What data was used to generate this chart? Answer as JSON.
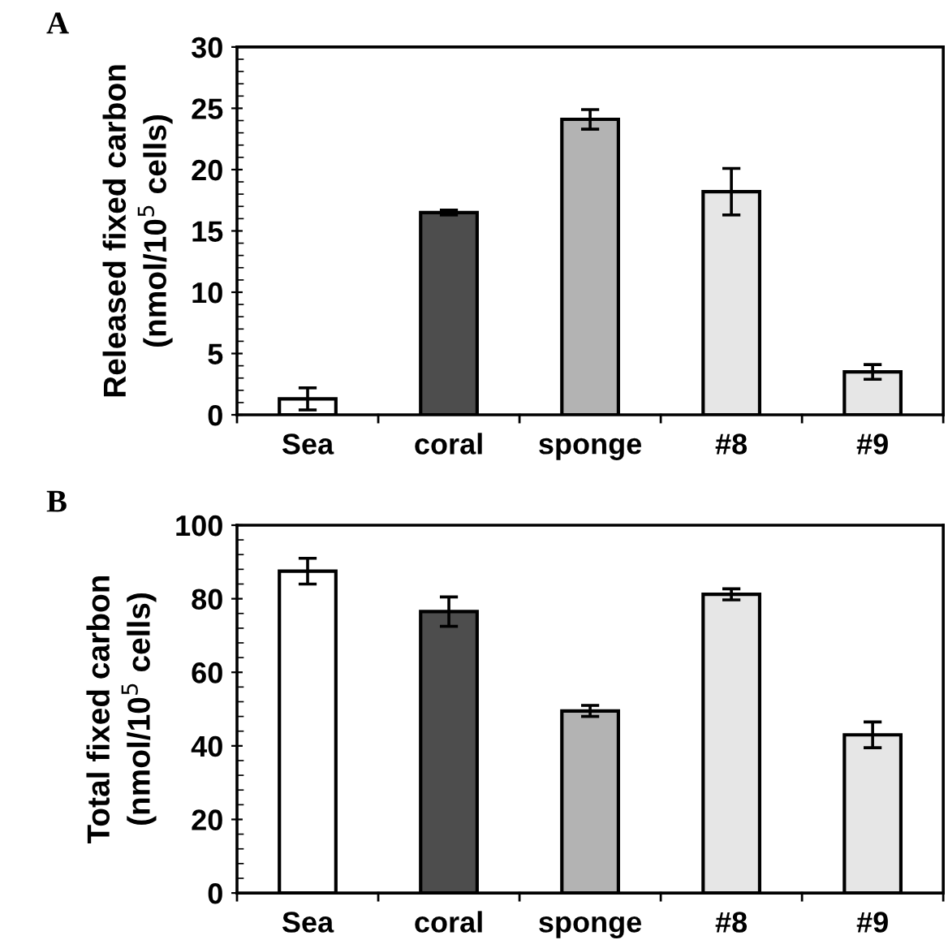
{
  "chart_data": [
    {
      "type": "bar",
      "title": "A",
      "ylabel": "Released fixed carbon\n(nmol/10$^{5}$ cells)",
      "categories": [
        "Sea",
        "coral",
        "sponge",
        "#8",
        "#9"
      ],
      "values": [
        1.3,
        16.5,
        24.1,
        18.2,
        3.5
      ],
      "errors": [
        0.9,
        0.2,
        0.8,
        1.9,
        0.6
      ],
      "colors": [
        "#ffffff",
        "#4d4d4d",
        "#b3b3b3",
        "#e6e6e6",
        "#e6e6e6"
      ],
      "ylim": [
        0,
        30
      ],
      "yticks": [
        0,
        5,
        10,
        15,
        20,
        25,
        30
      ],
      "grid": false,
      "legend": false
    },
    {
      "type": "bar",
      "title": "B",
      "ylabel": "Total fixed carbon\n(nmol/10$^{5}$ cells)",
      "categories": [
        "Sea",
        "coral",
        "sponge",
        "#8",
        "#9"
      ],
      "values": [
        87.5,
        76.5,
        49.5,
        81.2,
        43
      ],
      "errors": [
        3.5,
        4,
        1.5,
        1.5,
        3.5
      ],
      "colors": [
        "#ffffff",
        "#4d4d4d",
        "#b3b3b3",
        "#e6e6e6",
        "#e6e6e6"
      ],
      "ylim": [
        0,
        100
      ],
      "yticks": [
        0,
        20,
        40,
        60,
        80,
        100
      ],
      "grid": false,
      "legend": false
    }
  ]
}
